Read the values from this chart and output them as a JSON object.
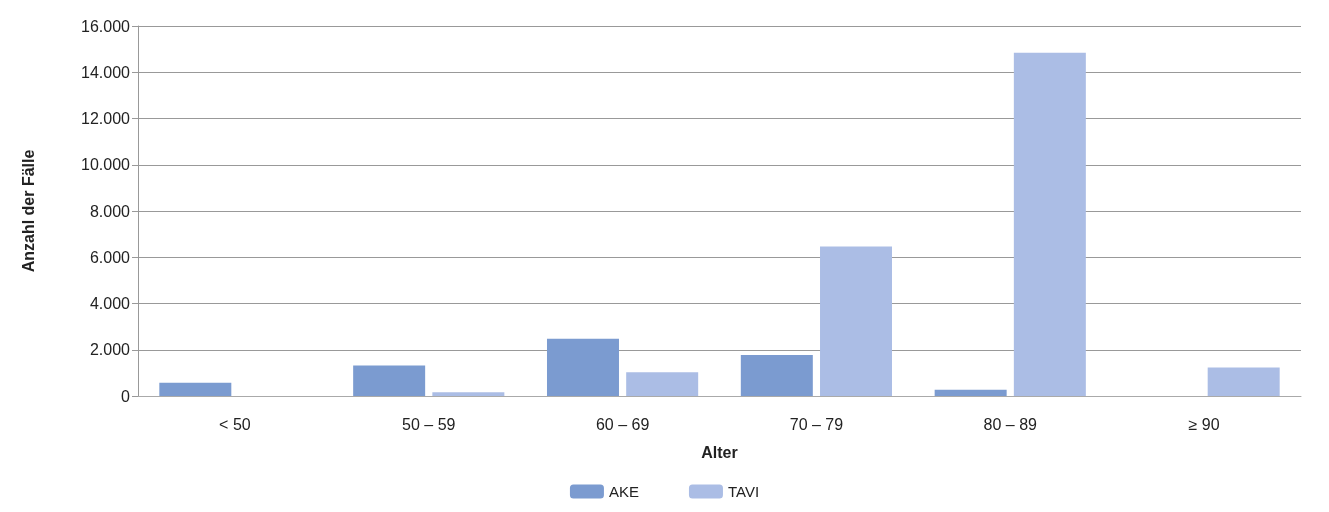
{
  "chart_data": {
    "type": "bar",
    "xlabel": "Alter",
    "ylabel": "Anzahl der Fälle",
    "categories": [
      "< 50",
      "50 – 59",
      "60 – 69",
      "70 – 79",
      "80 – 89",
      "≥ 90"
    ],
    "series": [
      {
        "name": "AKE",
        "color": "#7b9bd0",
        "values": [
          570,
          1320,
          2480,
          1770,
          270,
          0
        ]
      },
      {
        "name": "TAVI",
        "color": "#abbde5",
        "values": [
          0,
          160,
          1030,
          6460,
          14840,
          1230
        ]
      }
    ],
    "ylim": [
      0,
      16000
    ],
    "yticks": [
      0,
      {
        "value": 2000,
        "label": "2.000"
      },
      {
        "value": 4000,
        "label": "4.000"
      },
      {
        "value": 6000,
        "label": "6.000"
      },
      {
        "value": 8000,
        "label": "8.000"
      },
      {
        "value": 10000,
        "label": "10.000"
      },
      {
        "value": 12000,
        "label": "12.000"
      },
      {
        "value": 14000,
        "label": "14.000"
      },
      {
        "value": 16000,
        "label": "16.000"
      }
    ],
    "grid": "y",
    "legend": "bottom"
  }
}
